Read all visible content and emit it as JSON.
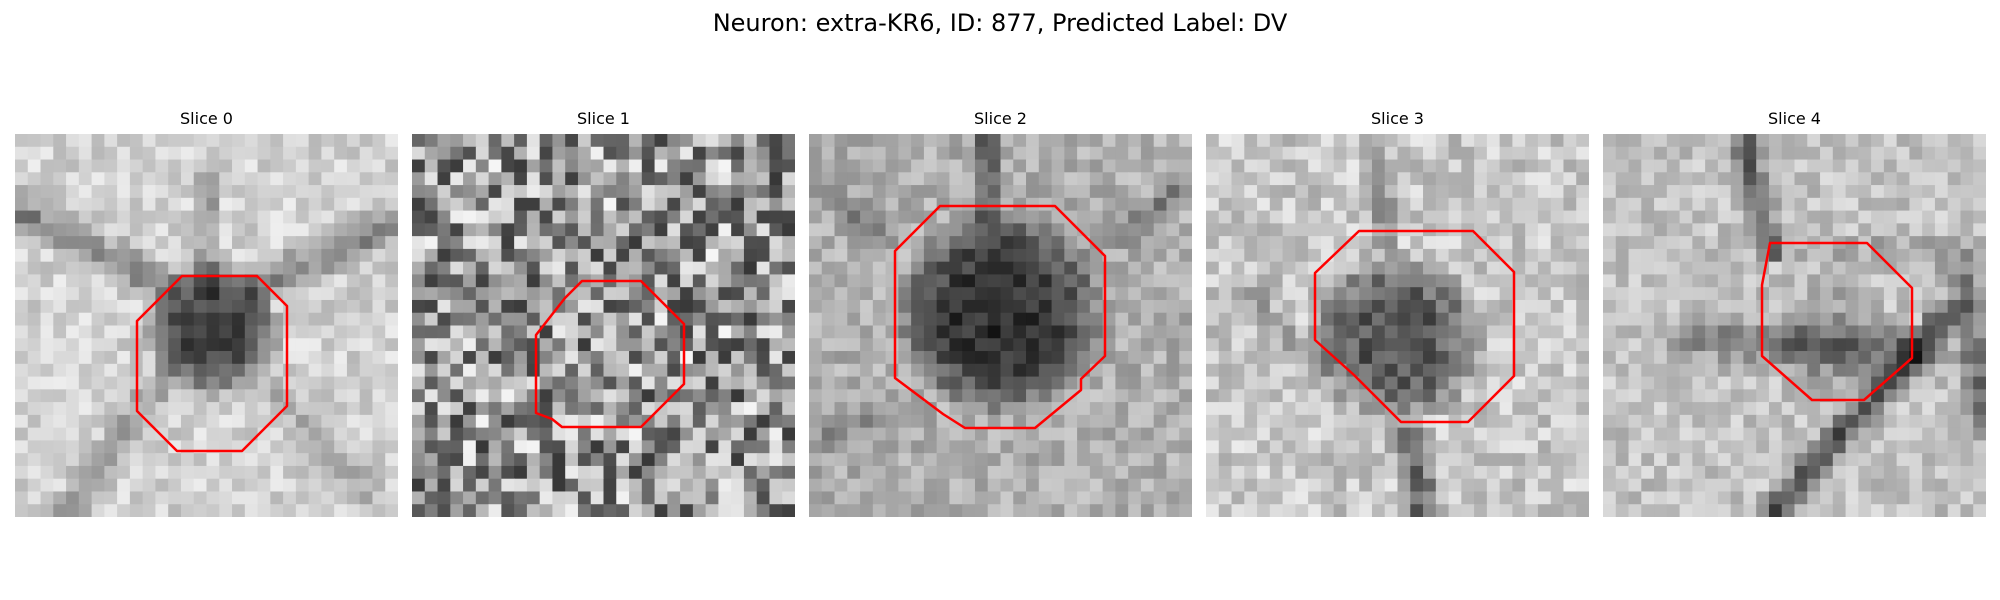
{
  "figure": {
    "suptitle": "Neuron: extra-KR6, ID: 877, Predicted Label: DV"
  },
  "colors": {
    "contour": "#ff0000",
    "background": "#ffffff"
  },
  "slices": [
    {
      "title": "Slice 0",
      "image": "grayscale EM patch, dark roundish cell body centered with darker membrane lines extending to corners",
      "seed": 11
    },
    {
      "title": "Slice 1",
      "image": "grayscale EM patch, high-contrast noisy speckle texture",
      "seed": 23
    },
    {
      "title": "Slice 2",
      "image": "grayscale EM patch, large dark cell body filling center with process extending upward",
      "seed": 37
    },
    {
      "title": "Slice 3",
      "image": "grayscale EM patch, dark cell body with process extending vertically",
      "seed": 41
    },
    {
      "title": "Slice 4",
      "image": "grayscale EM patch, lighter center with dark diagonal membrane lines",
      "seed": 53
    }
  ]
}
